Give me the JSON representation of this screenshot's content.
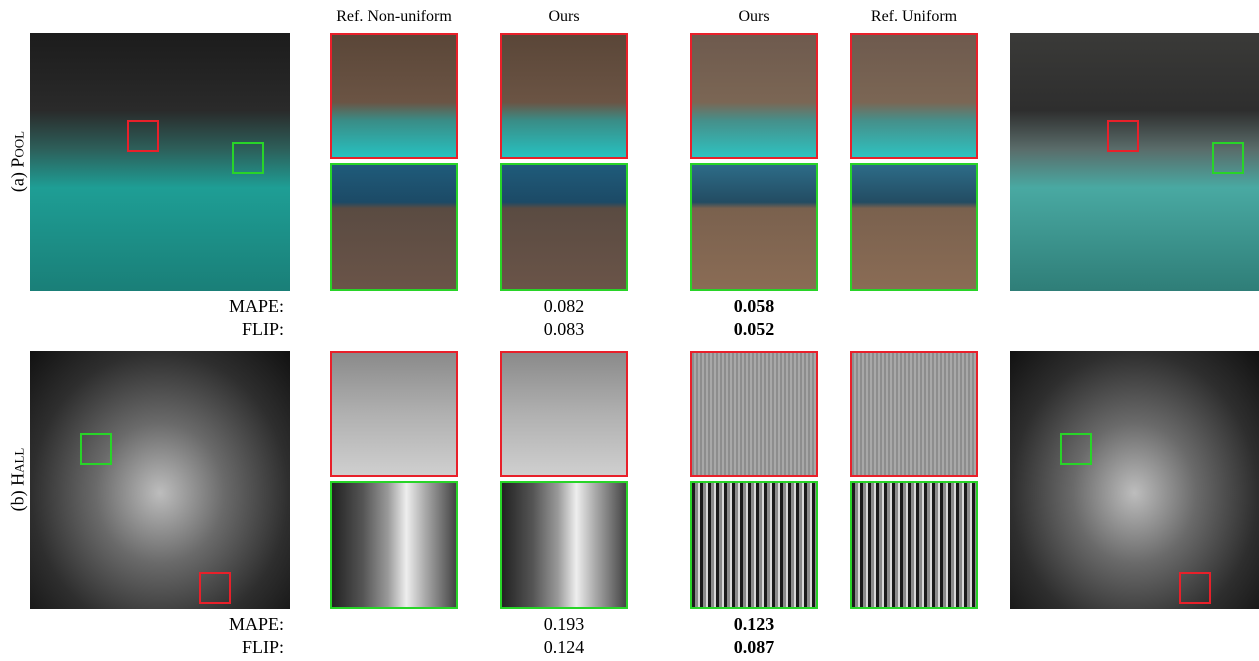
{
  "columns": [
    "Ref. Non-uniform",
    "Ours",
    "Ours",
    "Ref. Uniform"
  ],
  "rows": [
    {
      "label_prefix": "(a)",
      "label": "Pool",
      "metrics": [
        {
          "name": "MAPE:",
          "values": [
            "0.082",
            "0.058"
          ]
        },
        {
          "name": "FLIP:",
          "values": [
            "0.083",
            "0.052"
          ]
        }
      ]
    },
    {
      "label_prefix": "(b)",
      "label": "Hall",
      "metrics": [
        {
          "name": "MAPE:",
          "values": [
            "0.193",
            "0.123"
          ]
        },
        {
          "name": "FLIP:",
          "values": [
            "0.124",
            "0.087"
          ]
        }
      ]
    }
  ]
}
